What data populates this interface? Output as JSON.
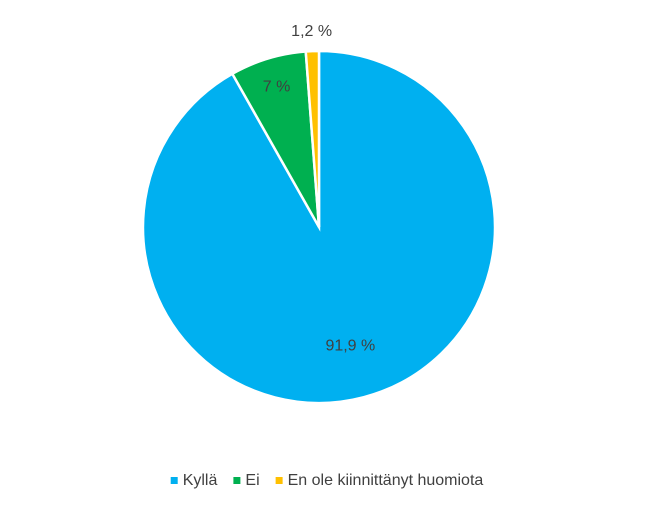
{
  "chart_data": {
    "type": "pie",
    "categories": [
      "Kyllä",
      "Ei",
      "En ole kiinnittänyt huomiota"
    ],
    "values": [
      91.9,
      7,
      1.2
    ],
    "value_labels": [
      "91,9 %",
      "7 %",
      "1,2 %"
    ],
    "colors": [
      "#00b0f0",
      "#00b050",
      "#ffc000"
    ],
    "legend": "bottom"
  }
}
